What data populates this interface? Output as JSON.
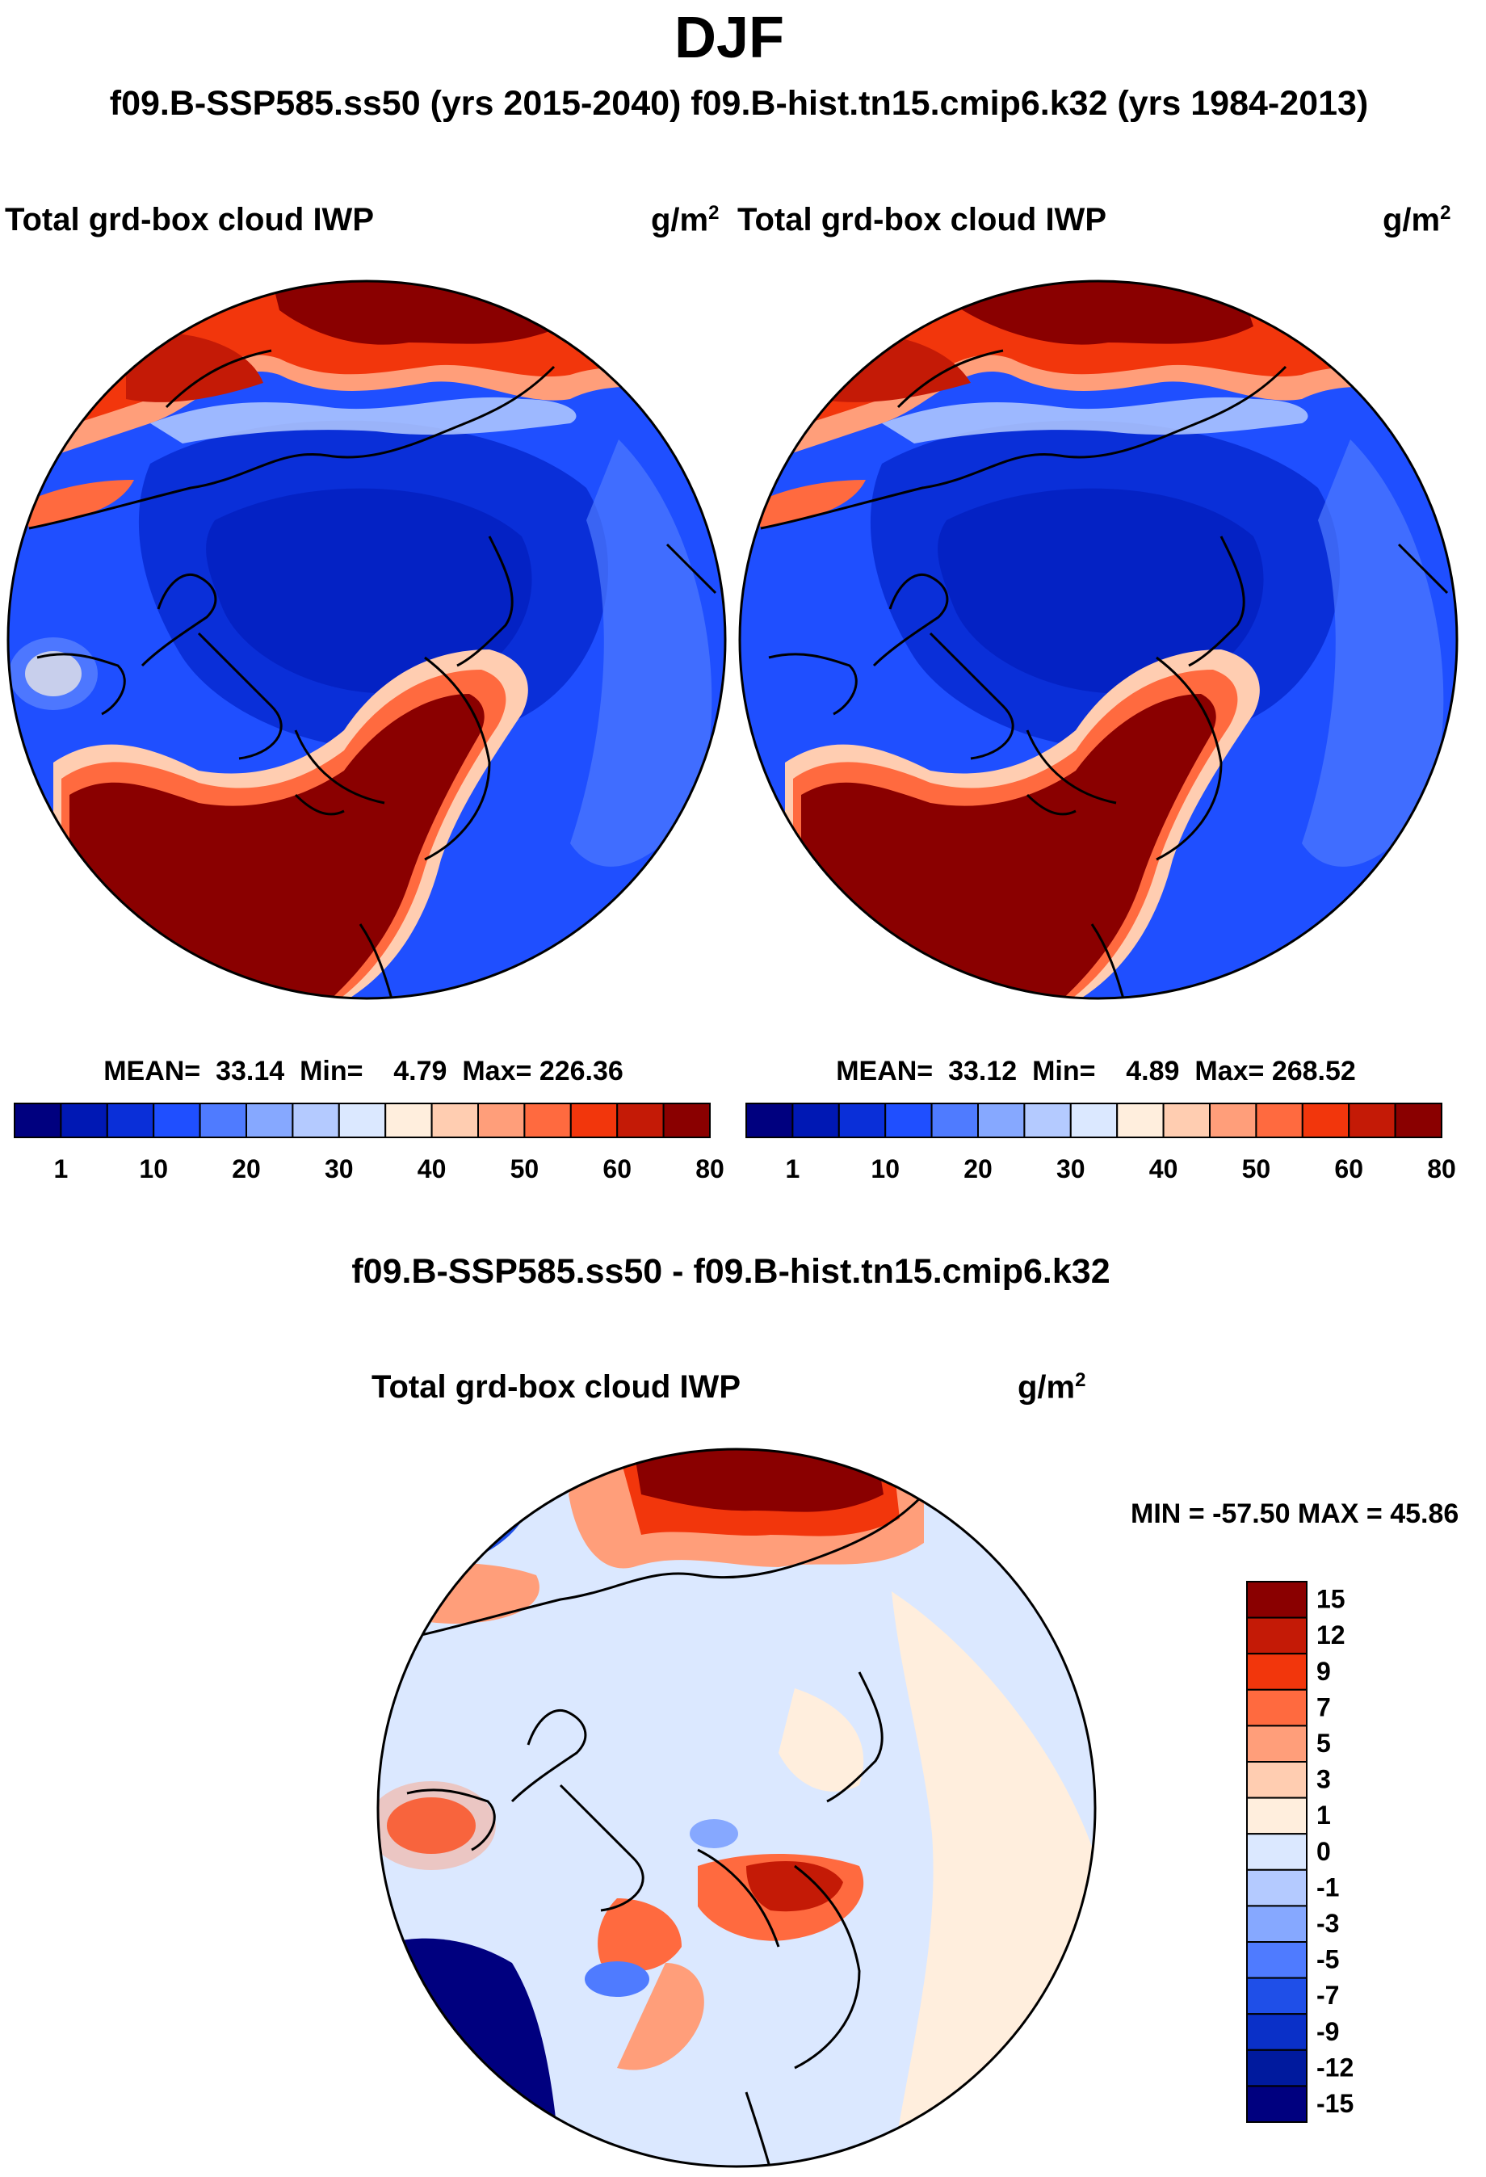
{
  "season": "DJF",
  "header_cases": "f09.B-SSP585.ss50 (yrs 2015-2040)  f09.B-hist.tn15.cmip6.k32 (yrs 1984-2013)",
  "panels": [
    {
      "variable": "Total grd-box cloud IWP",
      "units_base": "g/m",
      "units_sup": "2",
      "stats": {
        "mean_label": "MEAN=",
        "mean": "33.14",
        "min_label": "Min=",
        "min": "4.79",
        "max_label": "Max=",
        "max": "226.36"
      }
    },
    {
      "variable": "Total grd-box cloud IWP",
      "units_base": "g/m",
      "units_sup": "2",
      "stats": {
        "mean_label": "MEAN=",
        "mean": "33.12",
        "min_label": "Min=",
        "min": "4.89",
        "max_label": "Max=",
        "max": "268.52"
      }
    }
  ],
  "colorbar_abs": {
    "colors": [
      "#00007f",
      "#0018b4",
      "#0a2fd8",
      "#1f4fff",
      "#4f7bff",
      "#86a8ff",
      "#b4caff",
      "#dbe8ff",
      "#ffeedd",
      "#ffcdb1",
      "#ff9e7a",
      "#ff6a3f",
      "#f2360c",
      "#c41a06",
      "#8a0000"
    ],
    "labels": [
      "1",
      "10",
      "20",
      "30",
      "40",
      "50",
      "60",
      "80"
    ]
  },
  "diff": {
    "title": "f09.B-SSP585.ss50 - f09.B-hist.tn15.cmip6.k32",
    "variable": "Total grd-box cloud IWP",
    "units_base": "g/m",
    "units_sup": "2",
    "minmax": "MIN = -57.50 MAX =  45.86",
    "colorbar": {
      "colors": [
        "#00007f",
        "#001a9e",
        "#0a30c8",
        "#1f4fe8",
        "#4f7bff",
        "#86a8ff",
        "#b4caff",
        "#dbe8ff",
        "#ffeedd",
        "#ffcdb1",
        "#ff9e7a",
        "#ff6a3f",
        "#f2360c",
        "#c41a06",
        "#8a0000"
      ],
      "labels": [
        "15",
        "12",
        "9",
        "7",
        "5",
        "3",
        "1",
        "0",
        "-1",
        "-3",
        "-5",
        "-7",
        "-9",
        "-12",
        "-15"
      ]
    }
  }
}
